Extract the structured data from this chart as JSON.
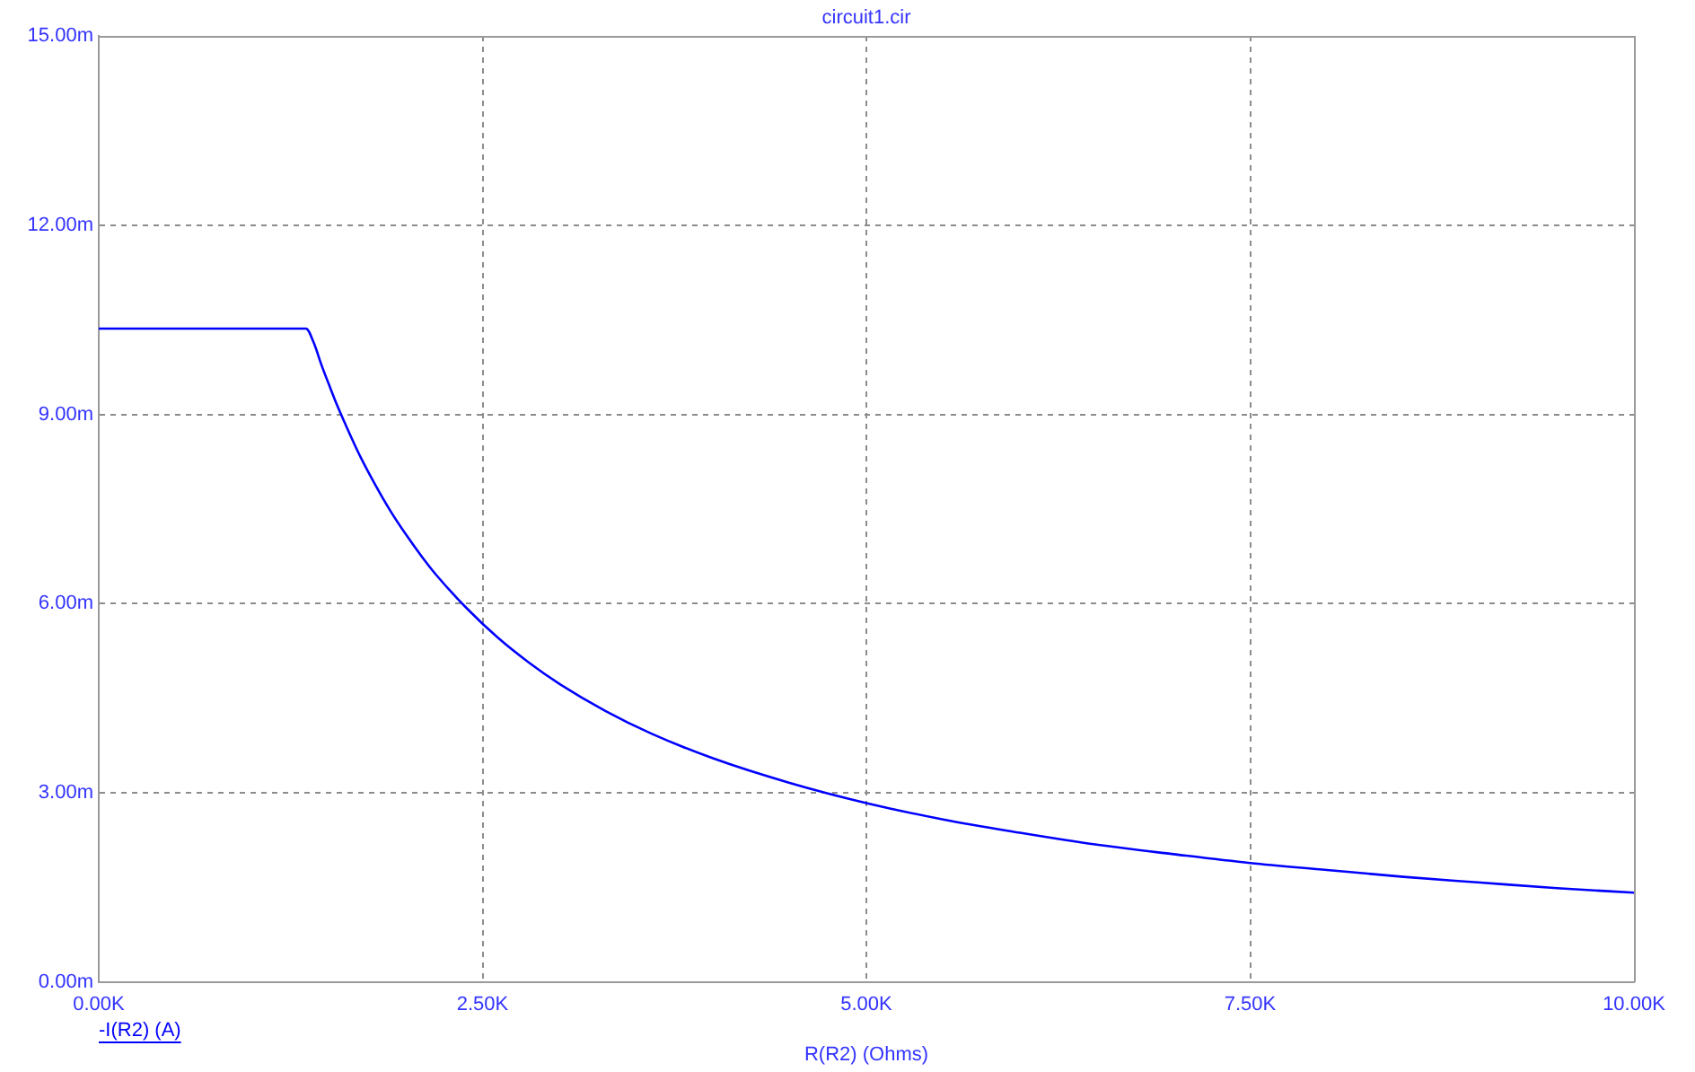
{
  "chart_data": {
    "type": "line",
    "title": "circuit1.cir",
    "xlabel": "R(R2) (Ohms)",
    "x": [
      0,
      1350,
      1400,
      1450,
      1500,
      1550,
      1600,
      1700,
      1800,
      1900,
      2000,
      2100,
      2200,
      2400,
      2600,
      2800,
      3000,
      3300,
      3600,
      4000,
      4500,
      5000,
      5500,
      6000,
      6500,
      7000,
      7500,
      8000,
      8500,
      9000,
      9500,
      10000
    ],
    "series": [
      {
        "name": "-I(R2) (A)",
        "color": "#0000ff",
        "values": [
          10.36,
          10.36,
          10.14,
          9.79,
          9.47,
          9.16,
          8.88,
          8.35,
          7.89,
          7.47,
          7.1,
          6.76,
          6.45,
          5.92,
          5.46,
          5.07,
          4.73,
          4.3,
          3.94,
          3.55,
          3.16,
          2.84,
          2.58,
          2.37,
          2.18,
          2.03,
          1.89,
          1.78,
          1.67,
          1.58,
          1.49,
          1.42
        ]
      }
    ],
    "xlim": [
      0,
      10000
    ],
    "xticks": [
      {
        "value": 0,
        "label": "0.00K"
      },
      {
        "value": 2500,
        "label": "2.50K"
      },
      {
        "value": 5000,
        "label": "5.00K"
      },
      {
        "value": 7500,
        "label": "7.50K"
      },
      {
        "value": 10000,
        "label": "10.00K"
      }
    ],
    "ylim": [
      0,
      15
    ],
    "yticks": [
      {
        "value": 0,
        "label": "0.00m"
      },
      {
        "value": 3,
        "label": "3.00m"
      },
      {
        "value": 6,
        "label": "6.00m"
      },
      {
        "value": 9,
        "label": "9.00m"
      },
      {
        "value": 12,
        "label": "12.00m"
      },
      {
        "value": 15,
        "label": "15.00m"
      }
    ],
    "grid": true,
    "legend": "bottom left",
    "line_style": "solid"
  }
}
